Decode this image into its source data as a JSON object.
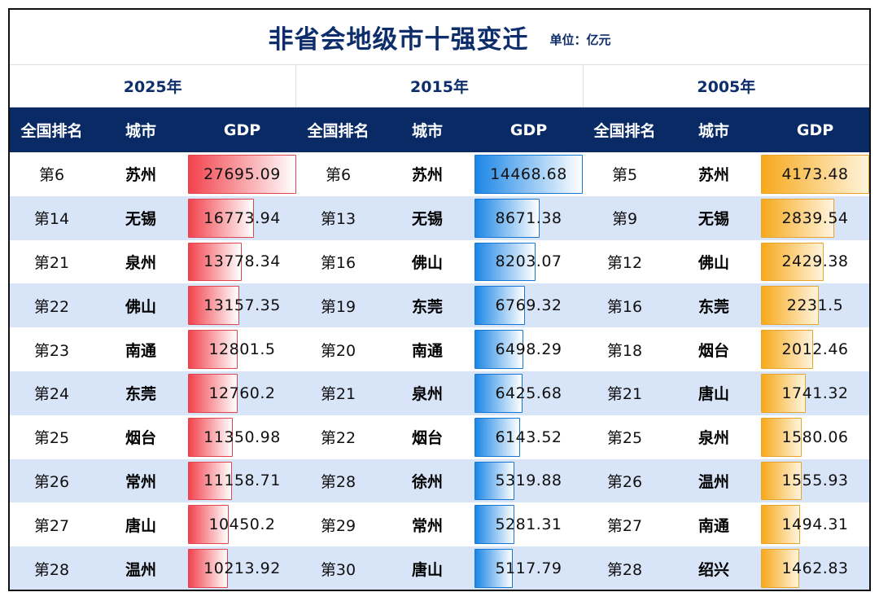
{
  "title": "非省会地级市十强变迁",
  "unit": "单位：亿元",
  "colors": {
    "header_bg": "#0a2a66",
    "stripe": "#d8e4f8",
    "bar_2025": "#f2434d",
    "bar_2015": "#1b86e6",
    "bar_2005": "#f7a91b"
  },
  "headers": {
    "rank": "全国排名",
    "city": "城市",
    "gdp": "GDP"
  },
  "chart_data": {
    "type": "table",
    "title": "非省会地级市十强变迁",
    "unit": "单位：亿元",
    "columns": [
      "全国排名",
      "城市",
      "GDP"
    ],
    "groups": [
      {
        "year": "2025年",
        "max": 27695.09,
        "rows": [
          {
            "rank": "第6",
            "city": "苏州",
            "gdp": 27695.09
          },
          {
            "rank": "第14",
            "city": "无锡",
            "gdp": 16773.94
          },
          {
            "rank": "第21",
            "city": "泉州",
            "gdp": 13778.34
          },
          {
            "rank": "第22",
            "city": "佛山",
            "gdp": 13157.35
          },
          {
            "rank": "第23",
            "city": "南通",
            "gdp": 12801.5
          },
          {
            "rank": "第24",
            "city": "东莞",
            "gdp": 12760.2
          },
          {
            "rank": "第25",
            "city": "烟台",
            "gdp": 11350.98
          },
          {
            "rank": "第26",
            "city": "常州",
            "gdp": 11158.71
          },
          {
            "rank": "第27",
            "city": "唐山",
            "gdp": 10450.2
          },
          {
            "rank": "第28",
            "city": "温州",
            "gdp": 10213.92
          }
        ]
      },
      {
        "year": "2015年",
        "max": 14468.68,
        "rows": [
          {
            "rank": "第6",
            "city": "苏州",
            "gdp": 14468.68
          },
          {
            "rank": "第13",
            "city": "无锡",
            "gdp": 8671.38
          },
          {
            "rank": "第16",
            "city": "佛山",
            "gdp": 8203.07
          },
          {
            "rank": "第19",
            "city": "东莞",
            "gdp": 6769.32
          },
          {
            "rank": "第20",
            "city": "南通",
            "gdp": 6498.29
          },
          {
            "rank": "第21",
            "city": "泉州",
            "gdp": 6425.68
          },
          {
            "rank": "第22",
            "city": "烟台",
            "gdp": 6143.52
          },
          {
            "rank": "第28",
            "city": "徐州",
            "gdp": 5319.88
          },
          {
            "rank": "第29",
            "city": "常州",
            "gdp": 5281.31
          },
          {
            "rank": "第30",
            "city": "唐山",
            "gdp": 5117.79
          }
        ]
      },
      {
        "year": "2005年",
        "max": 4173.48,
        "rows": [
          {
            "rank": "第5",
            "city": "苏州",
            "gdp": 4173.48
          },
          {
            "rank": "第9",
            "city": "无锡",
            "gdp": 2839.54
          },
          {
            "rank": "第12",
            "city": "佛山",
            "gdp": 2429.38
          },
          {
            "rank": "第16",
            "city": "东莞",
            "gdp": 2231.5
          },
          {
            "rank": "第18",
            "city": "烟台",
            "gdp": 2012.46
          },
          {
            "rank": "第21",
            "city": "唐山",
            "gdp": 1741.32
          },
          {
            "rank": "第25",
            "city": "泉州",
            "gdp": 1580.06
          },
          {
            "rank": "第26",
            "city": "温州",
            "gdp": 1555.93
          },
          {
            "rank": "第27",
            "city": "南通",
            "gdp": 1494.31
          },
          {
            "rank": "第28",
            "city": "绍兴",
            "gdp": 1462.83
          }
        ]
      }
    ]
  }
}
